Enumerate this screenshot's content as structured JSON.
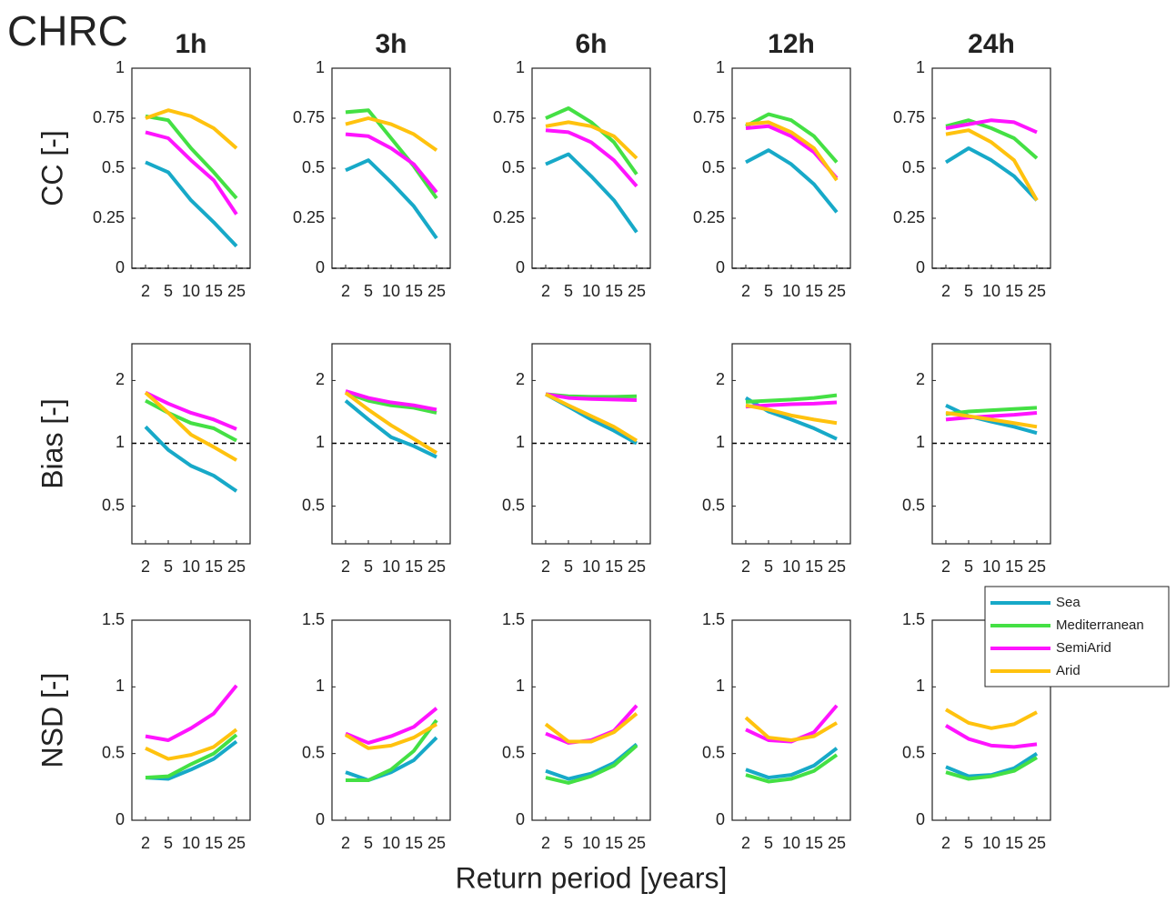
{
  "figure": {
    "title": "CHRC",
    "xlabel": "Return period [years]"
  },
  "chart_data": [
    {
      "type": "line",
      "title": "1h",
      "ylabel": "CC [-]",
      "categories": [
        "2",
        "5",
        "10",
        "15",
        "25"
      ],
      "ylim": [
        0,
        1
      ],
      "yticks": [
        0,
        0.25,
        0.5,
        0.75,
        1
      ],
      "refline": 0,
      "series": [
        {
          "color": "#17a9c8",
          "values": [
            0.53,
            0.48,
            0.34,
            0.23,
            0.11
          ]
        },
        {
          "color": "#44e044",
          "values": [
            0.76,
            0.74,
            0.6,
            0.48,
            0.35
          ]
        },
        {
          "color": "#ff14ff",
          "values": [
            0.68,
            0.65,
            0.54,
            0.44,
            0.27
          ]
        },
        {
          "color": "#ffc20e",
          "values": [
            0.75,
            0.79,
            0.76,
            0.7,
            0.6
          ]
        }
      ]
    },
    {
      "type": "line",
      "title": "3h",
      "categories": [
        "2",
        "5",
        "10",
        "15",
        "25"
      ],
      "ylim": [
        0,
        1
      ],
      "yticks": [
        0,
        0.25,
        0.5,
        0.75,
        1
      ],
      "refline": 0,
      "series": [
        {
          "color": "#17a9c8",
          "values": [
            0.49,
            0.54,
            0.43,
            0.31,
            0.15
          ]
        },
        {
          "color": "#44e044",
          "values": [
            0.78,
            0.79,
            0.65,
            0.51,
            0.35
          ]
        },
        {
          "color": "#ff14ff",
          "values": [
            0.67,
            0.66,
            0.6,
            0.52,
            0.38
          ]
        },
        {
          "color": "#ffc20e",
          "values": [
            0.72,
            0.75,
            0.72,
            0.67,
            0.59
          ]
        }
      ]
    },
    {
      "type": "line",
      "title": "6h",
      "categories": [
        "2",
        "5",
        "10",
        "15",
        "25"
      ],
      "ylim": [
        0,
        1
      ],
      "yticks": [
        0,
        0.25,
        0.5,
        0.75,
        1
      ],
      "refline": 0,
      "series": [
        {
          "color": "#17a9c8",
          "values": [
            0.52,
            0.57,
            0.46,
            0.34,
            0.18
          ]
        },
        {
          "color": "#44e044",
          "values": [
            0.75,
            0.8,
            0.73,
            0.63,
            0.47
          ]
        },
        {
          "color": "#ff14ff",
          "values": [
            0.69,
            0.68,
            0.63,
            0.54,
            0.41
          ]
        },
        {
          "color": "#ffc20e",
          "values": [
            0.71,
            0.73,
            0.71,
            0.66,
            0.55
          ]
        }
      ]
    },
    {
      "type": "line",
      "title": "12h",
      "categories": [
        "2",
        "5",
        "10",
        "15",
        "25"
      ],
      "ylim": [
        0,
        1
      ],
      "yticks": [
        0,
        0.25,
        0.5,
        0.75,
        1
      ],
      "refline": 0,
      "series": [
        {
          "color": "#17a9c8",
          "values": [
            0.53,
            0.59,
            0.52,
            0.42,
            0.28
          ]
        },
        {
          "color": "#44e044",
          "values": [
            0.71,
            0.77,
            0.74,
            0.66,
            0.53
          ]
        },
        {
          "color": "#ff14ff",
          "values": [
            0.7,
            0.71,
            0.66,
            0.58,
            0.45
          ]
        },
        {
          "color": "#ffc20e",
          "values": [
            0.72,
            0.73,
            0.68,
            0.6,
            0.44
          ]
        }
      ]
    },
    {
      "type": "line",
      "title": "24h",
      "categories": [
        "2",
        "5",
        "10",
        "15",
        "25"
      ],
      "ylim": [
        0,
        1
      ],
      "yticks": [
        0,
        0.25,
        0.5,
        0.75,
        1
      ],
      "refline": 0,
      "series": [
        {
          "color": "#17a9c8",
          "values": [
            0.53,
            0.6,
            0.54,
            0.46,
            0.34
          ]
        },
        {
          "color": "#44e044",
          "values": [
            0.71,
            0.74,
            0.7,
            0.65,
            0.55
          ]
        },
        {
          "color": "#ff14ff",
          "values": [
            0.7,
            0.72,
            0.74,
            0.73,
            0.68
          ]
        },
        {
          "color": "#ffc20e",
          "values": [
            0.67,
            0.69,
            0.63,
            0.54,
            0.34
          ]
        }
      ]
    },
    {
      "type": "line",
      "ylabel": "Bias [-]",
      "categories": [
        "2",
        "5",
        "10",
        "15",
        "25"
      ],
      "log": true,
      "ylim": [
        0.33,
        3
      ],
      "yticks": [
        0.5,
        1,
        2
      ],
      "refline": 1,
      "series": [
        {
          "color": "#17a9c8",
          "values": [
            1.2,
            0.93,
            0.78,
            0.7,
            0.59
          ]
        },
        {
          "color": "#44e044",
          "values": [
            1.6,
            1.4,
            1.25,
            1.18,
            1.03
          ]
        },
        {
          "color": "#ff14ff",
          "values": [
            1.75,
            1.55,
            1.4,
            1.3,
            1.17
          ]
        },
        {
          "color": "#ffc20e",
          "values": [
            1.75,
            1.4,
            1.1,
            0.96,
            0.83
          ]
        }
      ]
    },
    {
      "type": "line",
      "categories": [
        "2",
        "5",
        "10",
        "15",
        "25"
      ],
      "log": true,
      "ylim": [
        0.33,
        3
      ],
      "yticks": [
        0.5,
        1,
        2
      ],
      "refline": 1,
      "series": [
        {
          "color": "#17a9c8",
          "values": [
            1.6,
            1.3,
            1.07,
            0.97,
            0.86
          ]
        },
        {
          "color": "#44e044",
          "values": [
            1.75,
            1.6,
            1.52,
            1.48,
            1.4
          ]
        },
        {
          "color": "#ff14ff",
          "values": [
            1.78,
            1.65,
            1.57,
            1.52,
            1.45
          ]
        },
        {
          "color": "#ffc20e",
          "values": [
            1.75,
            1.45,
            1.22,
            1.05,
            0.9
          ]
        }
      ]
    },
    {
      "type": "line",
      "categories": [
        "2",
        "5",
        "10",
        "15",
        "25"
      ],
      "log": true,
      "ylim": [
        0.33,
        3
      ],
      "yticks": [
        0.5,
        1,
        2
      ],
      "refline": 1,
      "series": [
        {
          "color": "#17a9c8",
          "values": [
            1.72,
            1.5,
            1.3,
            1.15,
            1.0
          ]
        },
        {
          "color": "#44e044",
          "values": [
            1.72,
            1.68,
            1.67,
            1.67,
            1.68
          ]
        },
        {
          "color": "#ff14ff",
          "values": [
            1.72,
            1.65,
            1.63,
            1.62,
            1.61
          ]
        },
        {
          "color": "#ffc20e",
          "values": [
            1.72,
            1.52,
            1.35,
            1.2,
            1.03
          ]
        }
      ]
    },
    {
      "type": "line",
      "categories": [
        "2",
        "5",
        "10",
        "15",
        "25"
      ],
      "log": true,
      "ylim": [
        0.33,
        3
      ],
      "yticks": [
        0.5,
        1,
        2
      ],
      "refline": 1,
      "series": [
        {
          "color": "#17a9c8",
          "values": [
            1.65,
            1.42,
            1.3,
            1.18,
            1.05
          ]
        },
        {
          "color": "#44e044",
          "values": [
            1.58,
            1.6,
            1.62,
            1.65,
            1.7
          ]
        },
        {
          "color": "#ff14ff",
          "values": [
            1.5,
            1.52,
            1.54,
            1.55,
            1.57
          ]
        },
        {
          "color": "#ffc20e",
          "values": [
            1.52,
            1.45,
            1.36,
            1.3,
            1.25
          ]
        }
      ]
    },
    {
      "type": "line",
      "categories": [
        "2",
        "5",
        "10",
        "15",
        "25"
      ],
      "log": true,
      "ylim": [
        0.33,
        3
      ],
      "yticks": [
        0.5,
        1,
        2
      ],
      "refline": 1,
      "series": [
        {
          "color": "#17a9c8",
          "values": [
            1.52,
            1.35,
            1.27,
            1.2,
            1.12
          ]
        },
        {
          "color": "#44e044",
          "values": [
            1.38,
            1.42,
            1.44,
            1.46,
            1.48
          ]
        },
        {
          "color": "#ff14ff",
          "values": [
            1.3,
            1.33,
            1.35,
            1.37,
            1.4
          ]
        },
        {
          "color": "#ffc20e",
          "values": [
            1.4,
            1.35,
            1.3,
            1.25,
            1.2
          ]
        }
      ]
    },
    {
      "type": "line",
      "ylabel": "NSD [-]",
      "categories": [
        "2",
        "5",
        "10",
        "15",
        "25"
      ],
      "ylim": [
        0,
        1.5
      ],
      "yticks": [
        0,
        0.5,
        1,
        1.5
      ],
      "series": [
        {
          "color": "#17a9c8",
          "values": [
            0.32,
            0.31,
            0.38,
            0.46,
            0.59
          ]
        },
        {
          "color": "#44e044",
          "values": [
            0.32,
            0.33,
            0.42,
            0.5,
            0.64
          ]
        },
        {
          "color": "#ff14ff",
          "values": [
            0.63,
            0.6,
            0.69,
            0.8,
            1.01
          ]
        },
        {
          "color": "#ffc20e",
          "values": [
            0.54,
            0.46,
            0.49,
            0.55,
            0.68
          ]
        }
      ]
    },
    {
      "type": "line",
      "categories": [
        "2",
        "5",
        "10",
        "15",
        "25"
      ],
      "ylim": [
        0,
        1.5
      ],
      "yticks": [
        0,
        0.5,
        1,
        1.5
      ],
      "series": [
        {
          "color": "#17a9c8",
          "values": [
            0.36,
            0.3,
            0.36,
            0.45,
            0.62
          ]
        },
        {
          "color": "#44e044",
          "values": [
            0.3,
            0.3,
            0.38,
            0.52,
            0.75
          ]
        },
        {
          "color": "#ff14ff",
          "values": [
            0.65,
            0.58,
            0.63,
            0.7,
            0.84
          ]
        },
        {
          "color": "#ffc20e",
          "values": [
            0.64,
            0.54,
            0.56,
            0.62,
            0.72
          ]
        }
      ]
    },
    {
      "type": "line",
      "categories": [
        "2",
        "5",
        "10",
        "15",
        "25"
      ],
      "ylim": [
        0,
        1.5
      ],
      "yticks": [
        0,
        0.5,
        1,
        1.5
      ],
      "series": [
        {
          "color": "#17a9c8",
          "values": [
            0.37,
            0.31,
            0.35,
            0.43,
            0.57
          ]
        },
        {
          "color": "#44e044",
          "values": [
            0.32,
            0.28,
            0.33,
            0.41,
            0.56
          ]
        },
        {
          "color": "#ff14ff",
          "values": [
            0.65,
            0.58,
            0.6,
            0.67,
            0.86
          ]
        },
        {
          "color": "#ffc20e",
          "values": [
            0.72,
            0.59,
            0.59,
            0.66,
            0.8
          ]
        }
      ]
    },
    {
      "type": "line",
      "categories": [
        "2",
        "5",
        "10",
        "15",
        "25"
      ],
      "ylim": [
        0,
        1.5
      ],
      "yticks": [
        0,
        0.5,
        1,
        1.5
      ],
      "series": [
        {
          "color": "#17a9c8",
          "values": [
            0.38,
            0.32,
            0.34,
            0.41,
            0.54
          ]
        },
        {
          "color": "#44e044",
          "values": [
            0.34,
            0.29,
            0.31,
            0.37,
            0.49
          ]
        },
        {
          "color": "#ff14ff",
          "values": [
            0.68,
            0.6,
            0.59,
            0.66,
            0.86
          ]
        },
        {
          "color": "#ffc20e",
          "values": [
            0.77,
            0.62,
            0.6,
            0.63,
            0.73
          ]
        }
      ]
    },
    {
      "type": "line",
      "categories": [
        "2",
        "5",
        "10",
        "15",
        "25"
      ],
      "ylim": [
        0,
        1.5
      ],
      "yticks": [
        0,
        0.5,
        1,
        1.5
      ],
      "legend": "northeast",
      "series": [
        {
          "name": "Sea",
          "color": "#17a9c8",
          "values": [
            0.4,
            0.33,
            0.34,
            0.39,
            0.5
          ]
        },
        {
          "name": "Mediterranean",
          "color": "#44e044",
          "values": [
            0.36,
            0.31,
            0.33,
            0.37,
            0.47
          ]
        },
        {
          "name": "SemiArid",
          "color": "#ff14ff",
          "values": [
            0.71,
            0.61,
            0.56,
            0.55,
            0.57
          ]
        },
        {
          "name": "Arid",
          "color": "#ffc20e",
          "values": [
            0.83,
            0.73,
            0.69,
            0.72,
            0.81
          ]
        }
      ]
    }
  ]
}
